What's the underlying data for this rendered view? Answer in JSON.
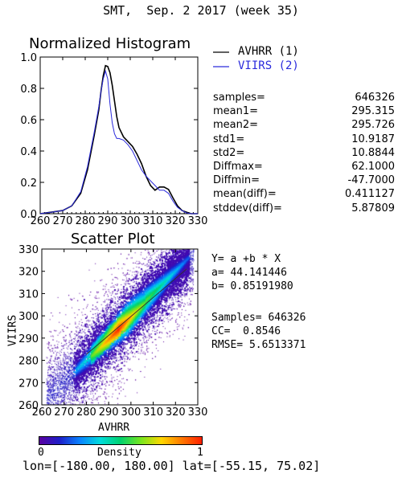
{
  "title": "SMT,  Sep. 2 2017 (week 35)",
  "histogram": {
    "title": "Normalized Histogram",
    "xlim": [
      260,
      330
    ],
    "ylim": [
      0.0,
      1.0
    ],
    "xticks": [
      "260",
      "270",
      "280",
      "290",
      "300",
      "310",
      "320",
      "330"
    ],
    "yticks": [
      "0.0",
      "0.2",
      "0.4",
      "0.6",
      "0.8",
      "1.0"
    ],
    "legend": [
      {
        "label": "AVHRR (1)",
        "color": "#000000"
      },
      {
        "label": "VIIRS (2)",
        "color": "#2a2adc"
      }
    ]
  },
  "stats": [
    {
      "key": "samples=",
      "value": "646326"
    },
    {
      "key": "mean1=",
      "value": "295.315"
    },
    {
      "key": "mean2=",
      "value": "295.726"
    },
    {
      "key": "std1=",
      "value": "10.9187"
    },
    {
      "key": "std2=",
      "value": "10.8844"
    },
    {
      "key": "Diffmax=",
      "value": "62.1000"
    },
    {
      "key": "Diffmin=",
      "value": "-47.7000"
    },
    {
      "key": "mean(diff)=",
      "value": "0.411127"
    },
    {
      "key": "stddev(diff)=",
      "value": "5.87809"
    }
  ],
  "scatter": {
    "title": "Scatter Plot",
    "xlabel": "AVHRR",
    "ylabel": "VIIRS",
    "xlim": [
      260,
      330
    ],
    "ylim": [
      260,
      330
    ],
    "xticks": [
      "260",
      "270",
      "280",
      "290",
      "300",
      "310",
      "320",
      "330"
    ],
    "yticks": [
      "260",
      "270",
      "280",
      "290",
      "300",
      "310",
      "320",
      "330"
    ]
  },
  "regression": {
    "equation": "Y= a +b * X",
    "a": "a= 44.141446",
    "b": "b= 0.85191980",
    "samples": "Samples= 646326",
    "cc": "CC=  0.8546",
    "rmse": "RMSE= 5.6513371"
  },
  "colorbar": {
    "label": "Density",
    "min": "0",
    "max": "1",
    "colors": [
      "#5a00a0",
      "#1e1ec8",
      "#0a82ff",
      "#00dcdc",
      "#00d26e",
      "#78e61e",
      "#ffd700",
      "#ff7800",
      "#ff1e00"
    ]
  },
  "footer": "lon=[-180.00, 180.00] lat=[-55.15, 75.02]",
  "chart_data": [
    {
      "type": "line",
      "title": "Normalized Histogram",
      "xlim": [
        260,
        330
      ],
      "ylim": [
        0,
        1.0
      ],
      "series": [
        {
          "name": "AVHRR (1)",
          "x": [
            260,
            265,
            270,
            274,
            278,
            281,
            284,
            286,
            287,
            288,
            289,
            290,
            291,
            292,
            293,
            294,
            295,
            297,
            299,
            301,
            303,
            305,
            307,
            309,
            311,
            313,
            315,
            317,
            319,
            321,
            323,
            325,
            327,
            330
          ],
          "values": [
            0.0,
            0.01,
            0.02,
            0.05,
            0.13,
            0.28,
            0.5,
            0.66,
            0.78,
            0.88,
            0.945,
            0.94,
            0.9,
            0.82,
            0.72,
            0.62,
            0.55,
            0.49,
            0.46,
            0.43,
            0.38,
            0.32,
            0.24,
            0.18,
            0.15,
            0.17,
            0.17,
            0.155,
            0.1,
            0.05,
            0.02,
            0.01,
            0.0,
            0.0
          ]
        },
        {
          "name": "VIIRS (2)",
          "x": [
            260,
            265,
            270,
            274,
            278,
            281,
            284,
            286,
            287,
            288,
            289,
            290,
            291,
            292,
            293,
            294,
            295,
            297,
            299,
            301,
            303,
            305,
            307,
            309,
            311,
            313,
            315,
            317,
            319,
            321,
            323,
            325,
            327,
            330
          ],
          "values": [
            0.0,
            0.01,
            0.02,
            0.05,
            0.14,
            0.3,
            0.52,
            0.68,
            0.78,
            0.86,
            0.91,
            0.86,
            0.7,
            0.58,
            0.51,
            0.48,
            0.48,
            0.47,
            0.44,
            0.4,
            0.34,
            0.28,
            0.24,
            0.21,
            0.18,
            0.15,
            0.15,
            0.13,
            0.08,
            0.04,
            0.02,
            0.005,
            0.0,
            0.0
          ]
        }
      ]
    },
    {
      "type": "scatter",
      "title": "Scatter Plot",
      "xlabel": "AVHRR",
      "ylabel": "VIIRS",
      "xlim": [
        260,
        330
      ],
      "ylim": [
        260,
        330
      ],
      "fit_line": {
        "intercept": 44.141446,
        "slope": 0.8519198,
        "x_range": [
          280,
          325
        ]
      }
    }
  ]
}
